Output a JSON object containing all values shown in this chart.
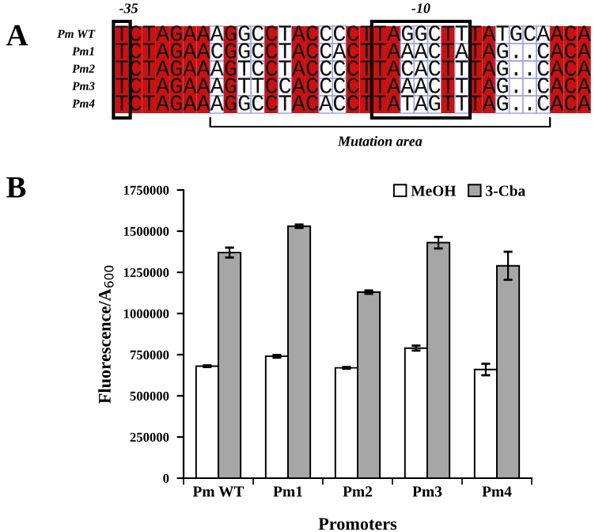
{
  "chart_data": [
    {
      "type": "other",
      "title": "A",
      "categories": [
        "Pm WT",
        "Pm1",
        "Pm2",
        "Pm3",
        "Pm4"
      ],
      "annotations": [
        "TCTAGAAAGGCCTACCCCTTAGGCTTTATGCAACA",
        "TCTAGAACGGCCTACCACTTAAACTATAG..CACA",
        "TCTAGAAAGTCCTACCCCTTACACTTTAG..CACA",
        "TCTAGAAAGTTCCACCCCTTAAACTTTAG..CACA",
        "TCTAGAAAGGCCTACACCTTATAGTTTAG..CACA",
        "-35",
        "-10",
        "Mutation area"
      ]
    },
    {
      "type": "bar",
      "title": "B",
      "categories": [
        "Pm WT",
        "Pm1",
        "Pm2",
        "Pm3",
        "Pm4"
      ],
      "xlabel": "Promoters",
      "ylabel": "Fluorescence/A$_{600}$",
      "series": [
        {
          "name": "MeOH",
          "color": "#ffffff",
          "values": [
            680000,
            740000,
            670000,
            790000,
            660000
          ],
          "errors": [
            5000,
            8000,
            5000,
            15000,
            35000
          ]
        },
        {
          "name": "3-Cba",
          "color": "#a6a6a6",
          "values": [
            1370000,
            1530000,
            1130000,
            1430000,
            1290000
          ],
          "errors": [
            30000,
            10000,
            10000,
            35000,
            85000
          ]
        }
      ],
      "ylim": [
        0,
        1750000
      ],
      "yticks": [
        0,
        250000,
        500000,
        750000,
        1000000,
        1250000,
        1500000,
        1750000
      ],
      "legend": "top right",
      "grid": false
    }
  ]
}
